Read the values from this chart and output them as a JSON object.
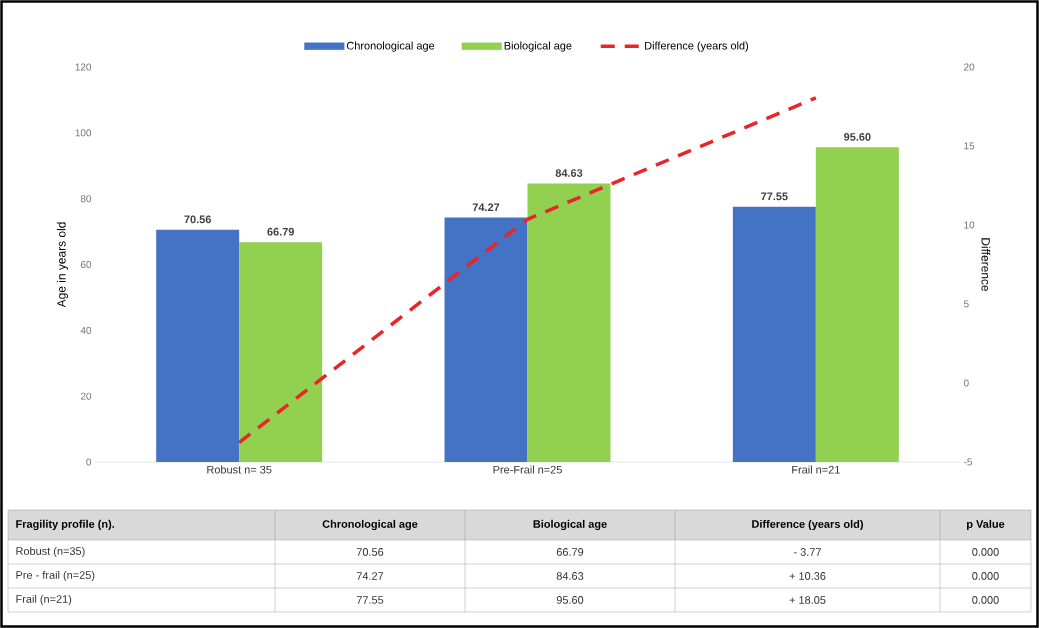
{
  "chart_data": [
    {
      "type": "bar",
      "categories": [
        "Robust n= 35",
        "Pre-Frail  n=25",
        "Frail n=21"
      ],
      "ylabel": "Age in years old",
      "y2label": "Difference",
      "ylim": [
        0,
        120
      ],
      "yticks": [
        0,
        20,
        40,
        60,
        80,
        100,
        120
      ],
      "y2lim": [
        -5,
        20
      ],
      "y2ticks": [
        -5,
        0,
        5,
        10,
        15,
        20
      ],
      "legend": "top",
      "series": [
        {
          "name": "Chronological age",
          "color": "#4472c4",
          "values": [
            70.56,
            74.27,
            77.55
          ],
          "value_labels": [
            "70.56",
            "74.27",
            "77.55"
          ]
        },
        {
          "name": "Biological age",
          "color": "#92d050",
          "values": [
            66.79,
            84.63,
            95.6
          ],
          "value_labels": [
            "66.79",
            "84.63",
            "95.60"
          ]
        },
        {
          "name": "Difference (years old)",
          "type": "line",
          "axis": "y2",
          "line_style": "dashed",
          "color": "#e8262a",
          "values": [
            -3.77,
            10.36,
            18.05
          ]
        }
      ]
    },
    {
      "type": "other",
      "categories": [
        "Fragility profile (n).",
        "Chronological age",
        "Biological age",
        "Difference (years old)",
        "p Value"
      ],
      "annotations": [
        "Robust (n=35)",
        "70.56",
        "66.79",
        "- 3.77",
        "0.000",
        "Pre - frail (n=25)",
        "74.27",
        "84.63",
        "+ 10.36",
        "0.000",
        "Frail (n=21)",
        "77.55",
        "95.60",
        "+ 18.05",
        "0.000"
      ]
    }
  ]
}
